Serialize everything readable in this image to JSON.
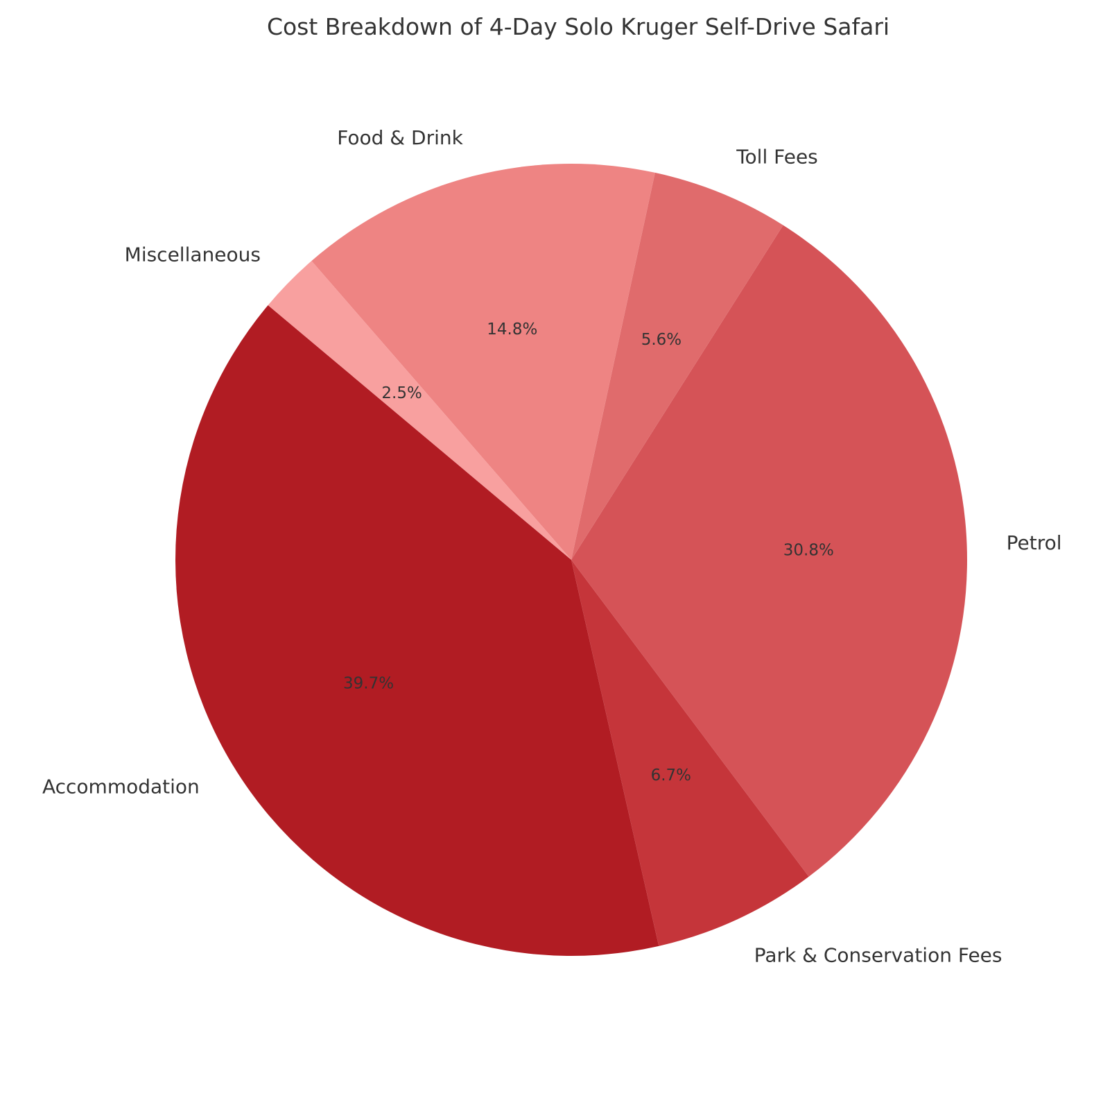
{
  "chart_data": {
    "type": "pie",
    "title": "Cost Breakdown of 4-Day Solo Kruger Self-Drive Safari",
    "slices": [
      {
        "label": "Accommodation",
        "percent_label": "39.7%",
        "value": 39.7,
        "color": "#b11c23"
      },
      {
        "label": "Park & Conservation Fees",
        "percent_label": "6.7%",
        "value": 6.7,
        "color": "#c5353a"
      },
      {
        "label": "Petrol",
        "percent_label": "30.8%",
        "value": 30.8,
        "color": "#d55357"
      },
      {
        "label": "Toll Fees",
        "percent_label": "5.6%",
        "value": 5.6,
        "color": "#e06b6c"
      },
      {
        "label": "Food & Drink",
        "percent_label": "14.8%",
        "value": 14.8,
        "color": "#ee8483"
      },
      {
        "label": "Miscellaneous",
        "percent_label": "2.5%",
        "value": 2.5,
        "color": "#f8a09f"
      }
    ],
    "start_angle_deg": 140,
    "direction": "counterclockwise",
    "legend": "none"
  }
}
